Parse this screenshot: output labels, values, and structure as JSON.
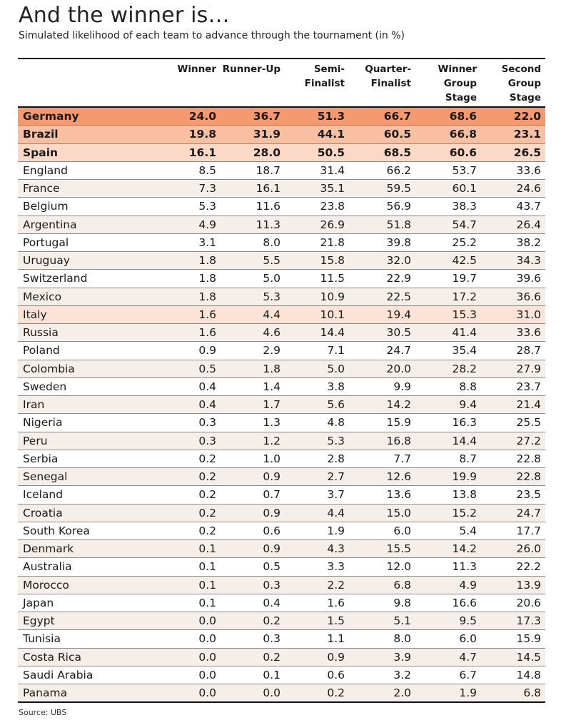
{
  "title": "And the winner is…",
  "subtitle": "Simulated likelihood of each team to advance through the tournament (in %)",
  "source": "Source: UBS",
  "colors": {
    "top1": "#f59a6e",
    "top2": "#f8c0a2",
    "top3": "#fbd9c6",
    "highlight": "#fbe3d6",
    "stripe": "#f6efe9"
  },
  "headers": [
    {
      "lines": [
        ""
      ]
    },
    {
      "lines": [
        "Winner"
      ]
    },
    {
      "lines": [
        "Runner-Up"
      ]
    },
    {
      "lines": [
        "Semi-",
        "Finalist"
      ]
    },
    {
      "lines": [
        "Quarter-",
        "Finalist"
      ]
    },
    {
      "lines": [
        "Winner",
        "Group",
        "Stage"
      ]
    },
    {
      "lines": [
        "Second",
        "Group",
        "Stage"
      ]
    }
  ],
  "rows": [
    {
      "team": "Germany",
      "values": [
        "24.0",
        "36.7",
        "51.3",
        "66.7",
        "68.6",
        "22.0"
      ],
      "style": "hl1"
    },
    {
      "team": "Brazil",
      "values": [
        "19.8",
        "31.9",
        "44.1",
        "60.5",
        "66.8",
        "23.1"
      ],
      "style": "hl2"
    },
    {
      "team": "Spain",
      "values": [
        "16.1",
        "28.0",
        "50.5",
        "68.5",
        "60.6",
        "26.5"
      ],
      "style": "hl3"
    },
    {
      "team": "England",
      "values": [
        "8.5",
        "18.7",
        "31.4",
        "66.2",
        "53.7",
        "33.6"
      ],
      "style": ""
    },
    {
      "team": "France",
      "values": [
        "7.3",
        "16.1",
        "35.1",
        "59.5",
        "60.1",
        "24.6"
      ],
      "style": "shade"
    },
    {
      "team": "Belgium",
      "values": [
        "5.3",
        "11.6",
        "23.8",
        "56.9",
        "38.3",
        "43.7"
      ],
      "style": ""
    },
    {
      "team": "Argentina",
      "values": [
        "4.9",
        "11.3",
        "26.9",
        "51.8",
        "54.7",
        "26.4"
      ],
      "style": "shade"
    },
    {
      "team": "Portugal",
      "values": [
        "3.1",
        "8.0",
        "21.8",
        "39.8",
        "25.2",
        "38.2"
      ],
      "style": ""
    },
    {
      "team": "Uruguay",
      "values": [
        "1.8",
        "5.5",
        "15.8",
        "32.0",
        "42.5",
        "34.3"
      ],
      "style": "shade"
    },
    {
      "team": "Switzerland",
      "values": [
        "1.8",
        "5.0",
        "11.5",
        "22.9",
        "19.7",
        "39.6"
      ],
      "style": ""
    },
    {
      "team": "Mexico",
      "values": [
        "1.8",
        "5.3",
        "10.9",
        "22.5",
        "17.2",
        "36.6"
      ],
      "style": "shade"
    },
    {
      "team": "Italy",
      "values": [
        "1.6",
        "4.4",
        "10.1",
        "19.4",
        "15.3",
        "31.0"
      ],
      "style": "italy"
    },
    {
      "team": "Russia",
      "values": [
        "1.6",
        "4.6",
        "14.4",
        "30.5",
        "41.4",
        "33.6"
      ],
      "style": "shade"
    },
    {
      "team": "Poland",
      "values": [
        "0.9",
        "2.9",
        "7.1",
        "24.7",
        "35.4",
        "28.7"
      ],
      "style": ""
    },
    {
      "team": "Colombia",
      "values": [
        "0.5",
        "1.8",
        "5.0",
        "20.0",
        "28.2",
        "27.9"
      ],
      "style": "shade"
    },
    {
      "team": "Sweden",
      "values": [
        "0.4",
        "1.4",
        "3.8",
        "9.9",
        "8.8",
        "23.7"
      ],
      "style": ""
    },
    {
      "team": "Iran",
      "values": [
        "0.4",
        "1.7",
        "5.6",
        "14.2",
        "9.4",
        "21.4"
      ],
      "style": "shade"
    },
    {
      "team": "Nigeria",
      "values": [
        "0.3",
        "1.3",
        "4.8",
        "15.9",
        "16.3",
        "25.5"
      ],
      "style": ""
    },
    {
      "team": "Peru",
      "values": [
        "0.3",
        "1.2",
        "5.3",
        "16.8",
        "14.4",
        "27.2"
      ],
      "style": "shade"
    },
    {
      "team": "Serbia",
      "values": [
        "0.2",
        "1.0",
        "2.8",
        "7.7",
        "8.7",
        "22.8"
      ],
      "style": ""
    },
    {
      "team": "Senegal",
      "values": [
        "0.2",
        "0.9",
        "2.7",
        "12.6",
        "19.9",
        "22.8"
      ],
      "style": "shade"
    },
    {
      "team": "Iceland",
      "values": [
        "0.2",
        "0.7",
        "3.7",
        "13.6",
        "13.8",
        "23.5"
      ],
      "style": ""
    },
    {
      "team": "Croatia",
      "values": [
        "0.2",
        "0.9",
        "4.4",
        "15.0",
        "15.2",
        "24.7"
      ],
      "style": "shade"
    },
    {
      "team": "South Korea",
      "values": [
        "0.2",
        "0.6",
        "1.9",
        "6.0",
        "5.4",
        "17.7"
      ],
      "style": ""
    },
    {
      "team": "Denmark",
      "values": [
        "0.1",
        "0.9",
        "4.3",
        "15.5",
        "14.2",
        "26.0"
      ],
      "style": "shade"
    },
    {
      "team": "Australia",
      "values": [
        "0.1",
        "0.5",
        "3.3",
        "12.0",
        "11.3",
        "22.2"
      ],
      "style": ""
    },
    {
      "team": "Morocco",
      "values": [
        "0.1",
        "0.3",
        "2.2",
        "6.8",
        "4.9",
        "13.9"
      ],
      "style": "shade"
    },
    {
      "team": "Japan",
      "values": [
        "0.1",
        "0.4",
        "1.6",
        "9.8",
        "16.6",
        "20.6"
      ],
      "style": ""
    },
    {
      "team": "Egypt",
      "values": [
        "0.0",
        "0.2",
        "1.5",
        "5.1",
        "9.5",
        "17.3"
      ],
      "style": "shade"
    },
    {
      "team": "Tunisia",
      "values": [
        "0.0",
        "0.3",
        "1.1",
        "8.0",
        "6.0",
        "15.9"
      ],
      "style": ""
    },
    {
      "team": "Costa Rica",
      "values": [
        "0.0",
        "0.2",
        "0.9",
        "3.9",
        "4.7",
        "14.5"
      ],
      "style": "shade"
    },
    {
      "team": "Saudi Arabia",
      "values": [
        "0.0",
        "0.1",
        "0.6",
        "3.2",
        "6.7",
        "14.8"
      ],
      "style": ""
    },
    {
      "team": "Panama",
      "values": [
        "0.0",
        "0.0",
        "0.2",
        "2.0",
        "1.9",
        "6.8"
      ],
      "style": "shade"
    }
  ]
}
